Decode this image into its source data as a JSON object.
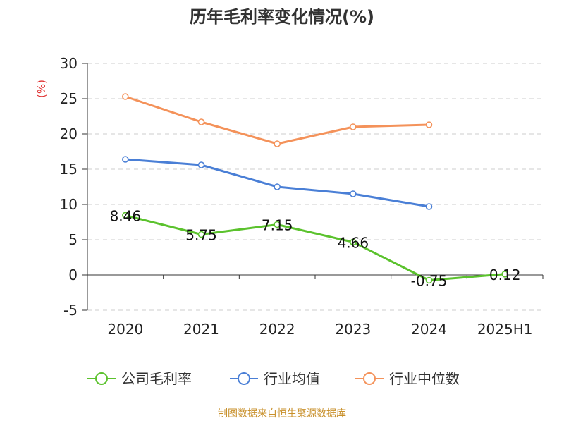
{
  "chart_data": {
    "type": "line",
    "title": "历年毛利率变化情况(%)",
    "ylabel": "(%)",
    "categories": [
      "2020",
      "2021",
      "2022",
      "2023",
      "2024",
      "2025H1"
    ],
    "ylim": [
      -5,
      30
    ],
    "yticks": [
      "30",
      "25",
      "20",
      "15",
      "10",
      "5",
      "0",
      "-5"
    ],
    "grid": true,
    "legend_position": "bottom",
    "series": [
      {
        "name": "公司毛利率",
        "color": "#5bc22d",
        "values": [
          8.46,
          5.75,
          7.15,
          4.66,
          -0.75,
          0.12
        ],
        "labels": [
          "8.46",
          "5.75",
          "7.15",
          "4.66",
          "-0.75",
          "0.12"
        ]
      },
      {
        "name": "行业均值",
        "color": "#4a7fd6",
        "values": [
          16.4,
          15.6,
          12.5,
          11.5,
          9.7,
          null
        ]
      },
      {
        "name": "行业中位数",
        "color": "#f4925a",
        "values": [
          25.3,
          21.7,
          18.6,
          21.0,
          21.3,
          null
        ]
      }
    ]
  },
  "source": "制图数据来自恒生聚源数据库"
}
